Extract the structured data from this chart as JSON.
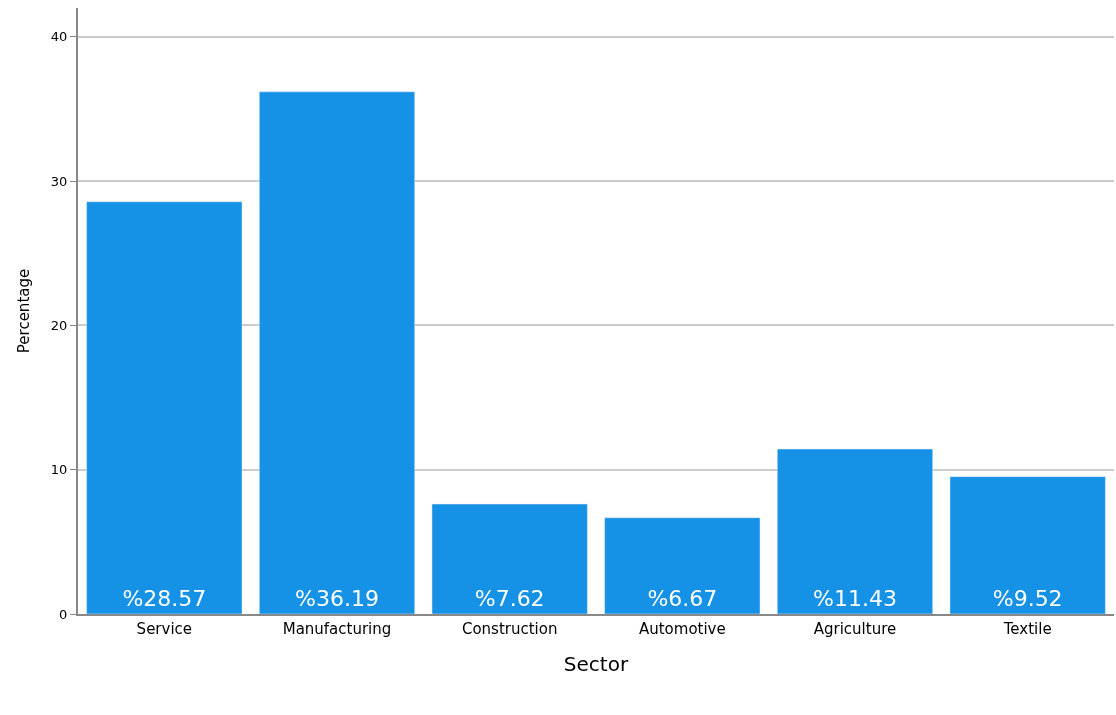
{
  "chart_data": {
    "type": "bar",
    "xlabel": "Sector",
    "ylabel": "Percentage",
    "categories": [
      "Service",
      "Manufacturing",
      "Construction",
      "Automotive",
      "Agriculture",
      "Textile"
    ],
    "values": [
      28.57,
      36.19,
      7.62,
      6.67,
      11.43,
      9.52
    ],
    "value_labels": [
      "%28.57",
      "%36.19",
      "%7.62",
      "%6.67",
      "%11.43",
      "%9.52"
    ],
    "color": "#1591e6",
    "ylim": [
      0,
      42
    ],
    "yticks": [
      0,
      10,
      20,
      30,
      40
    ],
    "grid": "y",
    "legend": false
  }
}
